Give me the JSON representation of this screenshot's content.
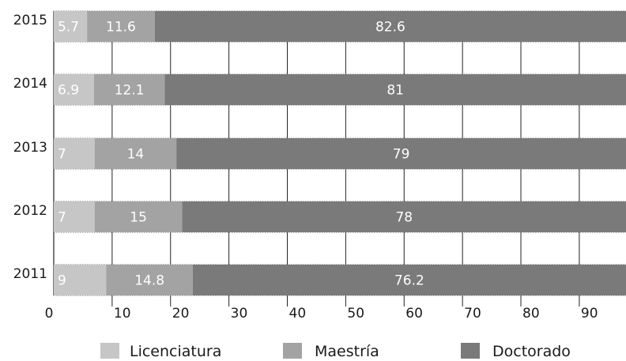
{
  "chart_data": {
    "type": "bar",
    "orientation": "horizontal",
    "stacked": true,
    "categories": [
      "2015",
      "2014",
      "2013",
      "2012",
      "2011"
    ],
    "series": [
      {
        "name": "Licenciatura",
        "values": [
          5.7,
          6.9,
          7,
          7,
          9
        ],
        "labels": [
          "5.7",
          "6.9",
          "7",
          "7",
          "9"
        ],
        "color": "#c6c6c6"
      },
      {
        "name": "Maestría",
        "values": [
          11.6,
          12.1,
          14,
          15,
          14.8
        ],
        "labels": [
          "11.6",
          "12.1",
          "14",
          "15",
          "14.8"
        ],
        "color": "#a3a3a3"
      },
      {
        "name": "Doctorado",
        "values": [
          82.6,
          81,
          79,
          78,
          76.2
        ],
        "labels": [
          "82.6",
          "81",
          "79",
          "78",
          "76.2"
        ],
        "color": "#7a7a7a"
      }
    ],
    "xticks": [
      "0",
      "10",
      "20",
      "30",
      "40",
      "50",
      "60",
      "70",
      "80",
      "90"
    ],
    "xlim": [
      0,
      98
    ],
    "grid": "vertical",
    "legend_position": "bottom"
  }
}
